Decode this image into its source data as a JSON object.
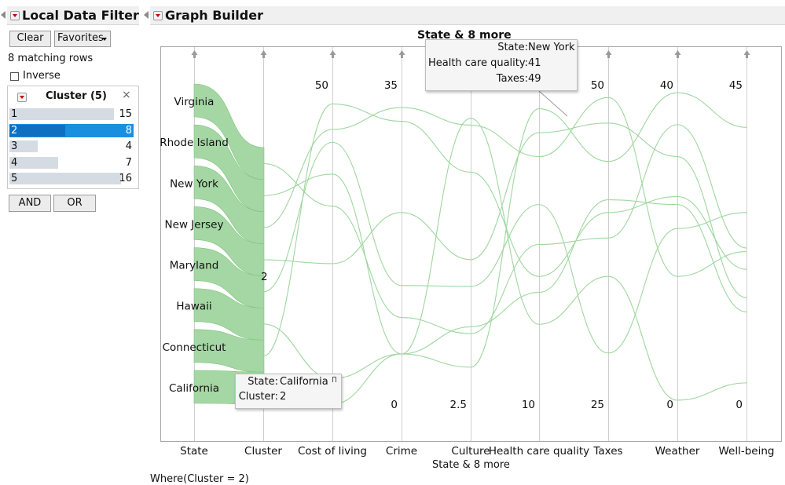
{
  "left_panel": {
    "title": "Local Data Filter",
    "clear_label": "Clear",
    "favorites_label": "Favorites",
    "matching_rows": "8 matching rows",
    "inverse_label": "Inverse",
    "filter_title": "Cluster (5)",
    "close_glyph": "×",
    "rows": [
      {
        "level": "1",
        "count": "15",
        "fraction": 0.9375,
        "selected": false
      },
      {
        "level": "2",
        "count": "8",
        "fraction": 0.5,
        "selected": true
      },
      {
        "level": "3",
        "count": "4",
        "fraction": 0.25,
        "selected": false
      },
      {
        "level": "4",
        "count": "7",
        "fraction": 0.4375,
        "selected": false
      },
      {
        "level": "5",
        "count": "16",
        "fraction": 1.0,
        "selected": false
      }
    ],
    "and_label": "AND",
    "or_label": "OR"
  },
  "graph_builder": {
    "title": "Graph Builder",
    "graph_title": "State & 8 more",
    "x_title": "State & 8 more",
    "where_clause": "Where(Cluster = 2)",
    "line_color": "#9fd69f",
    "ribbon_color": "#9fd59f",
    "tooltip_top": {
      "state_label": "State:",
      "state_value": "New York",
      "hc_label": "Health care quality:",
      "hc_value": "41",
      "tax_label": "Taxes:",
      "tax_value": "49"
    },
    "tooltip_bottom": {
      "state_label": "State:",
      "state_value": "California",
      "cluster_label": "Cluster:",
      "cluster_value": "2"
    }
  },
  "chart_data": {
    "type": "parallel-coordinates",
    "title": "State & 8 more",
    "xlabel": "State & 8 more",
    "axes": [
      "State",
      "Cluster",
      "Cost of living",
      "Crime",
      "Culture",
      "Health care quality",
      "Taxes",
      "Weather",
      "Well-being"
    ],
    "axis_ranges": {
      "Cost of living": [
        0,
        50
      ],
      "Crime": [
        0,
        35
      ],
      "Culture": [
        2.5,
        50
      ],
      "Health care quality": [
        10,
        50
      ],
      "Taxes": [
        25,
        50
      ],
      "Weather": [
        0,
        40
      ],
      "Well-being": [
        0,
        45
      ]
    },
    "tick_labels": {
      "Cost of living": [
        "50"
      ],
      "Crime": [
        "35",
        "0"
      ],
      "Culture": [
        "2.5"
      ],
      "Health care quality": [
        "10"
      ],
      "Taxes": [
        "50",
        "25"
      ],
      "Weather": [
        "40",
        "0"
      ],
      "Well-being": [
        "45",
        "0"
      ]
    },
    "state_labels": [
      "Virginia",
      "Rhode Island",
      "New York",
      "New Jersey",
      "Maryland",
      "Hawaii",
      "Connecticut",
      "California"
    ],
    "cluster_label": "2",
    "series": [
      {
        "name": "California",
        "values": {
          "Cost of living": 0,
          "Crime": 5.5,
          "Culture": 45,
          "Health care quality": 20,
          "Taxes": 35,
          "Weather": 0.5,
          "Well-being": 3
        }
      },
      {
        "name": "Connecticut",
        "values": {
          "Cost of living": 47,
          "Crime": 31,
          "Culture": 37,
          "Health care quality": 26,
          "Taxes": 40,
          "Weather": 26,
          "Well-being": 19
        }
      },
      {
        "name": "Hawaii",
        "values": {
          "Cost of living": 4,
          "Crime": 5.5,
          "Culture": 8,
          "Health care quality": 47,
          "Taxes": 44,
          "Weather": 39,
          "Well-being": 39
        }
      },
      {
        "name": "Maryland",
        "values": {
          "Cost of living": 41,
          "Crime": 13,
          "Culture": 20,
          "Health care quality": 35,
          "Taxes": 29,
          "Weather": 22,
          "Well-being": 27
        }
      },
      {
        "name": "New Jersey",
        "values": {
          "Cost of living": 22,
          "Crime": 21,
          "Culture": 24,
          "Health care quality": 44,
          "Taxes": 47,
          "Weather": 31,
          "Well-being": 15
        }
      },
      {
        "name": "New York",
        "values": {
          "Cost of living": 43,
          "Crime": 32.5,
          "Culture": 44,
          "Health care quality": 41,
          "Taxes": 49,
          "Weather": 16,
          "Well-being": 21.5
        }
      },
      {
        "name": "Rhode Island",
        "values": {
          "Cost of living": 36,
          "Crime": 5.5,
          "Culture": 14,
          "Health care quality": 24,
          "Taxes": 41,
          "Weather": 25,
          "Well-being": 13
        }
      },
      {
        "name": "Virginia",
        "values": {
          "Cost of living": 31,
          "Crime": 9.5,
          "Culture": 13,
          "Health care quality": 30,
          "Taxes": 38,
          "Weather": 35,
          "Well-being": 22
        }
      }
    ]
  }
}
